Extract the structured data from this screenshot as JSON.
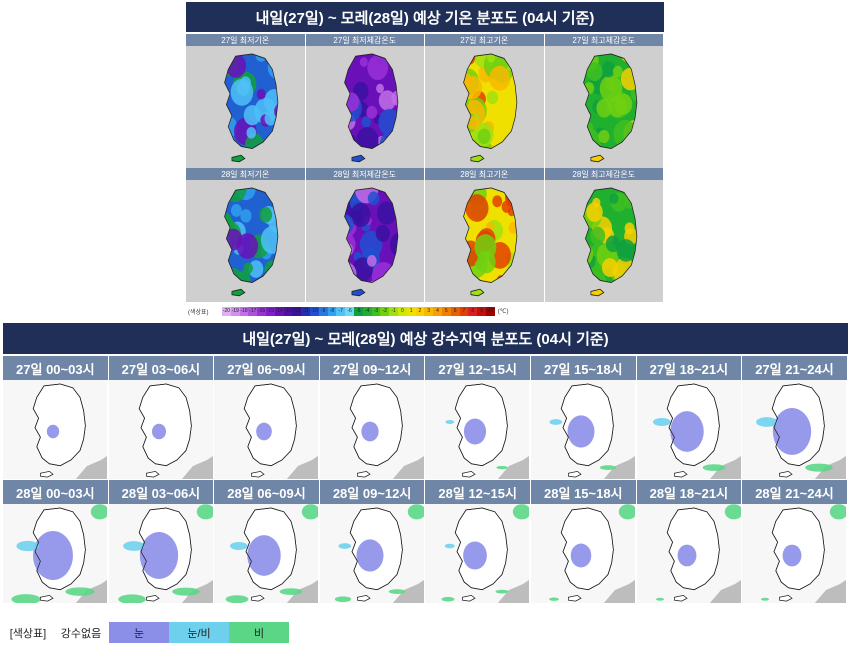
{
  "temperature": {
    "title": "내일(27일) ~ 모레(28일) 예상 기온 분포도 (04시 기준)",
    "maps": [
      {
        "label": "27일 최저기온",
        "palette": "cold"
      },
      {
        "label": "27일 최저체감온도",
        "palette": "colder"
      },
      {
        "label": "27일 최고기온",
        "palette": "warm"
      },
      {
        "label": "27일 최고체감온도",
        "palette": "mild"
      },
      {
        "label": "28일 최저기온",
        "palette": "cold"
      },
      {
        "label": "28일 최저체감온도",
        "palette": "colder"
      },
      {
        "label": "28일 최고기온",
        "palette": "warm"
      },
      {
        "label": "28일 최고체감온도",
        "palette": "mild"
      }
    ],
    "scale": {
      "label": "(색상표)",
      "unit": "(℃)",
      "values": [
        "-20",
        "-19",
        "-18",
        "-17",
        "-16",
        "-15",
        "-14",
        "-13",
        "-12",
        "-11",
        "-10",
        "-9",
        "-8",
        "-7",
        "-6",
        "-5",
        "-4",
        "-3",
        "-2",
        "-1",
        "0",
        "1",
        "2",
        "3",
        "4",
        "5",
        "6",
        "7",
        "8",
        "9",
        "10"
      ],
      "colors": [
        "#e0b0f0",
        "#d090f0",
        "#c070e8",
        "#b050e0",
        "#9a30d8",
        "#8020c8",
        "#6a10b8",
        "#5010a0",
        "#3a10a0",
        "#2030b0",
        "#2050d0",
        "#2878e0",
        "#30a0f0",
        "#50c0f8",
        "#70d8f0",
        "#10a040",
        "#20b030",
        "#40c020",
        "#70d010",
        "#a0e010",
        "#d0e800",
        "#f0e000",
        "#f8d000",
        "#f8b800",
        "#f8a000",
        "#f08000",
        "#e86000",
        "#e04000",
        "#d82020",
        "#c01010",
        "#a00000"
      ]
    }
  },
  "precipitation": {
    "title": "내일(27일) ~ 모레(28일) 예상 강수지역 분포도 (04시 기준)",
    "maps": [
      {
        "label": "27일 00~03시",
        "intensity": 0.05
      },
      {
        "label": "27일 03~06시",
        "intensity": 0.1
      },
      {
        "label": "27일 06~09시",
        "intensity": 0.15
      },
      {
        "label": "27일 09~12시",
        "intensity": 0.2
      },
      {
        "label": "27일 12~15시",
        "intensity": 0.35
      },
      {
        "label": "27일 15~18시",
        "intensity": 0.5
      },
      {
        "label": "27일 18~21시",
        "intensity": 0.7
      },
      {
        "label": "27일 21~24시",
        "intensity": 0.85
      },
      {
        "label": "28일 00~03시",
        "intensity": 0.9
      },
      {
        "label": "28일 03~06시",
        "intensity": 0.85
      },
      {
        "label": "28일 06~09시",
        "intensity": 0.7
      },
      {
        "label": "28일 09~12시",
        "intensity": 0.5
      },
      {
        "label": "28일 12~15시",
        "intensity": 0.4
      },
      {
        "label": "28일 15~18시",
        "intensity": 0.3
      },
      {
        "label": "28일 18~21시",
        "intensity": 0.25
      },
      {
        "label": "28일 21~24시",
        "intensity": 0.25
      }
    ],
    "legend": {
      "label": "[색상표]",
      "none": "강수없음",
      "items": [
        {
          "text": "눈",
          "color": "#8c8fe8"
        },
        {
          "text": "눈/비",
          "color": "#6fd0ee"
        },
        {
          "text": "비",
          "color": "#5bd687"
        }
      ]
    }
  }
}
